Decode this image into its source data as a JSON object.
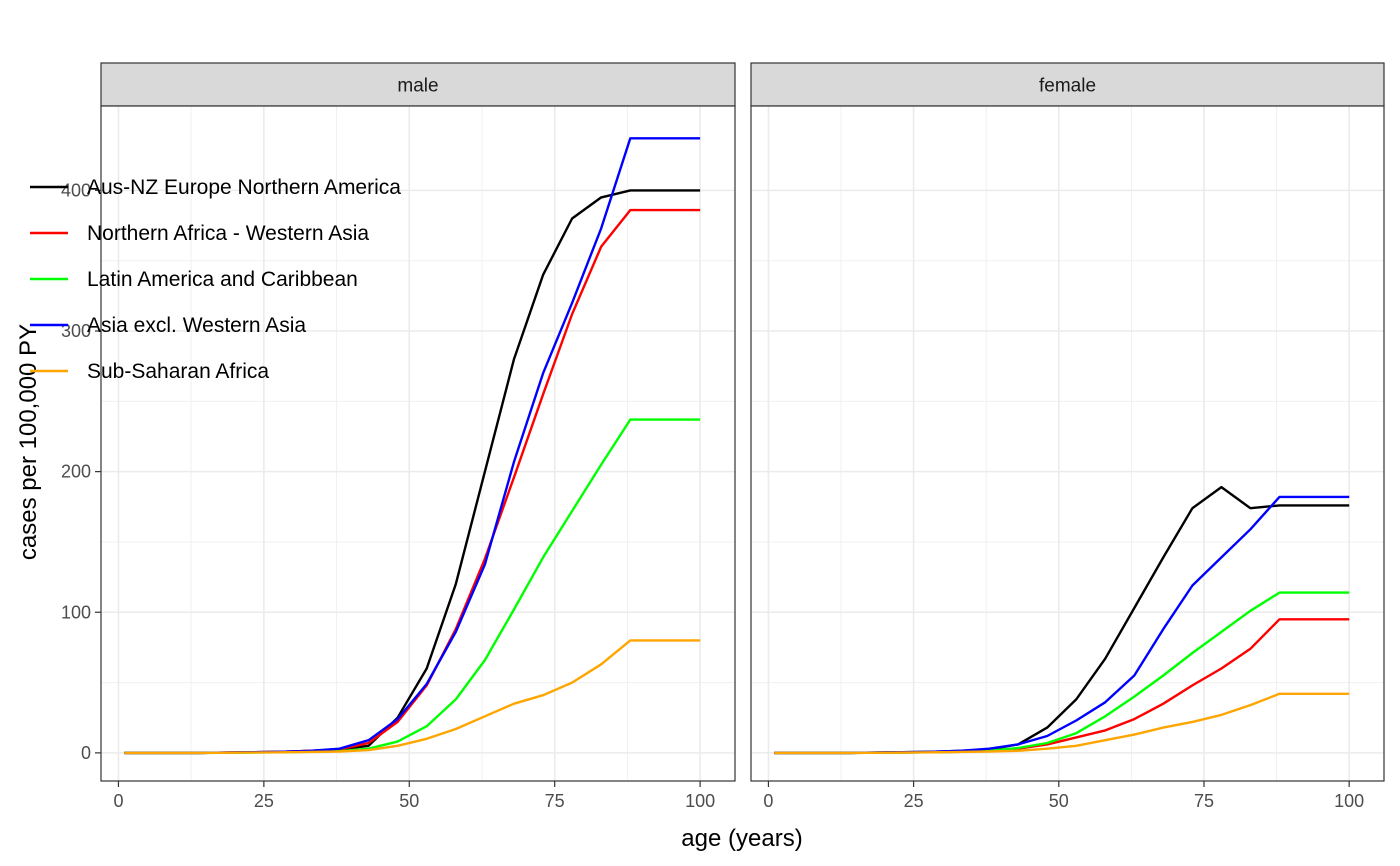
{
  "chart_data": {
    "type": "line",
    "xlabel": "age (years)",
    "ylabel": "cases per 100,000 PY",
    "facets": [
      {
        "label": "male",
        "series": [
          {
            "name": "Aus-NZ Europe Northern America",
            "color": "#000000",
            "x": [
              1,
              14,
              23,
              28,
              33,
              38,
              43,
              48,
              53,
              58,
              63,
              68,
              73,
              78,
              83,
              88,
              100
            ],
            "y": [
              0,
              0,
              0.5,
              0.8,
              1.5,
              2.5,
              5,
              25,
              60,
              120,
              200,
              280,
              340,
              380,
              395,
              400,
              400
            ]
          },
          {
            "name": "Northern Africa - Western Asia",
            "color": "#ff0000",
            "x": [
              1,
              14,
              23,
              28,
              33,
              38,
              43,
              48,
              53,
              58,
              63,
              68,
              73,
              78,
              83,
              88,
              100
            ],
            "y": [
              0,
              0,
              0.5,
              0.8,
              1.5,
              2.5,
              7,
              22,
              48,
              88,
              138,
              196,
              255,
              312,
              360,
              386,
              386
            ]
          },
          {
            "name": "Latin America and Caribbean",
            "color": "#00ff00",
            "x": [
              1,
              14,
              23,
              28,
              33,
              38,
              43,
              48,
              53,
              58,
              63,
              68,
              73,
              78,
              83,
              88,
              100
            ],
            "y": [
              0,
              0,
              0.3,
              0.5,
              0.8,
              1.2,
              3,
              8,
              19,
              38,
              66,
              102,
              139,
              172,
              205,
              237,
              237
            ]
          },
          {
            "name": "Asia excl. Western Asia",
            "color": "#0000ff",
            "x": [
              1,
              14,
              23,
              28,
              33,
              38,
              43,
              48,
              53,
              58,
              63,
              68,
              73,
              78,
              83,
              88,
              100
            ],
            "y": [
              0,
              0,
              0.5,
              0.8,
              1.5,
              3,
              9,
              24,
              49,
              86,
              134,
              207,
              270,
              320,
              373,
              437,
              437
            ]
          },
          {
            "name": "Sub-Saharan Africa",
            "color": "#ffa500",
            "x": [
              1,
              14,
              23,
              28,
              33,
              38,
              43,
              48,
              53,
              58,
              63,
              68,
              73,
              78,
              83,
              88,
              100
            ],
            "y": [
              0,
              0,
              0.2,
              0.4,
              0.7,
              1,
              2,
              5,
              10,
              17,
              26,
              35,
              41,
              50,
              63,
              80,
              80
            ]
          }
        ]
      },
      {
        "label": "female",
        "series": [
          {
            "name": "Aus-NZ Europe Northern America",
            "color": "#000000",
            "x": [
              1,
              14,
              23,
              28,
              33,
              38,
              43,
              48,
              53,
              58,
              63,
              68,
              73,
              78,
              83,
              88,
              100
            ],
            "y": [
              0,
              0,
              0.5,
              0.8,
              1.5,
              2.5,
              6,
              18,
              38,
              67,
              103,
              139,
              174,
              189,
              174,
              176,
              176
            ]
          },
          {
            "name": "Northern Africa - Western Asia",
            "color": "#ff0000",
            "x": [
              1,
              14,
              23,
              28,
              33,
              38,
              43,
              48,
              53,
              58,
              63,
              68,
              73,
              78,
              83,
              88,
              100
            ],
            "y": [
              0,
              0,
              0.3,
              0.5,
              0.8,
              1.5,
              3,
              6,
              11,
              16,
              24,
              35,
              48,
              60,
              74,
              95,
              95
            ]
          },
          {
            "name": "Latin America and Caribbean",
            "color": "#00ff00",
            "x": [
              1,
              14,
              23,
              28,
              33,
              38,
              43,
              48,
              53,
              58,
              63,
              68,
              73,
              78,
              83,
              88,
              100
            ],
            "y": [
              0,
              0,
              0.3,
              0.5,
              0.8,
              1.5,
              3.5,
              7,
              14,
              26,
              40,
              55,
              71,
              86,
              101,
              114,
              114
            ]
          },
          {
            "name": "Asia excl. Western Asia",
            "color": "#0000ff",
            "x": [
              1,
              14,
              23,
              28,
              33,
              38,
              43,
              48,
              53,
              58,
              63,
              68,
              73,
              78,
              83,
              88,
              100
            ],
            "y": [
              0,
              0,
              0.5,
              0.8,
              1.5,
              3,
              6,
              12,
              23,
              36,
              55,
              88,
              119,
              139,
              159,
              182,
              182
            ]
          },
          {
            "name": "Sub-Saharan Africa",
            "color": "#ffa500",
            "x": [
              1,
              14,
              23,
              28,
              33,
              38,
              43,
              48,
              53,
              58,
              63,
              68,
              73,
              78,
              83,
              88,
              100
            ],
            "y": [
              0,
              0,
              0.2,
              0.4,
              0.7,
              1,
              1.5,
              3,
              5,
              9,
              13,
              18,
              22,
              27,
              34,
              42,
              42
            ]
          }
        ]
      }
    ],
    "xlim": [
      -3,
      106
    ],
    "ylim": [
      -20,
      460
    ],
    "xticks": [
      0,
      25,
      50,
      75,
      100
    ],
    "yticks": [
      0,
      100,
      200,
      300,
      400
    ],
    "ytick_labels": [
      "0",
      "100",
      "200",
      "300",
      "400"
    ],
    "grid": true,
    "legend_position": "top-left",
    "legend": [
      {
        "name": "Aus-NZ Europe Northern America",
        "color": "#000000"
      },
      {
        "name": "Northern Africa - Western Asia",
        "color": "#ff0000"
      },
      {
        "name": "Latin America and Caribbean",
        "color": "#00ff00"
      },
      {
        "name": "Asia excl. Western Asia",
        "color": "#0000ff"
      },
      {
        "name": "Sub-Saharan Africa",
        "color": "#ffa500"
      }
    ]
  }
}
